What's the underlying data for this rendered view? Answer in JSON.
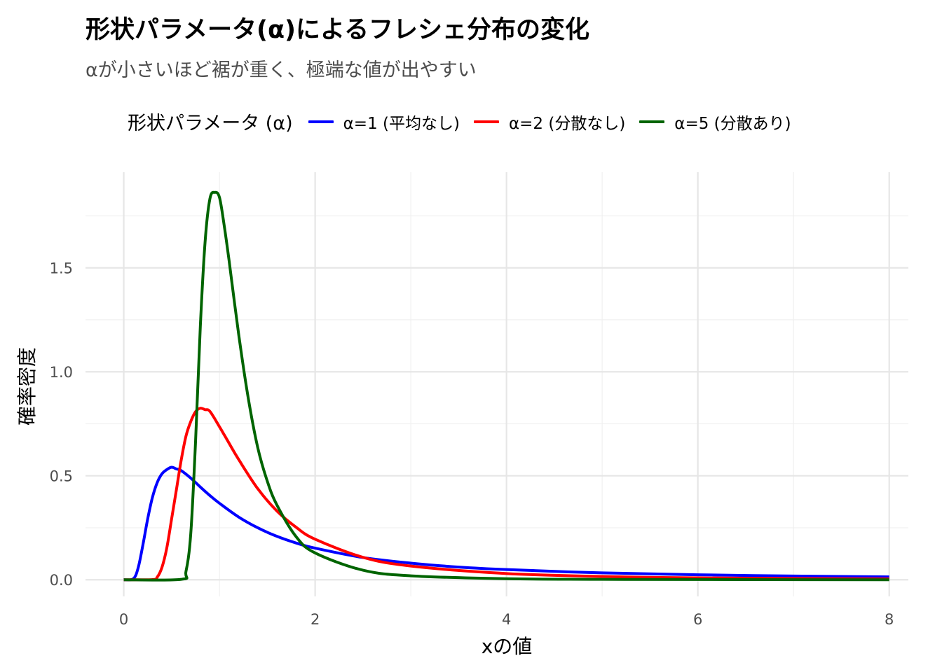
{
  "chart_data": {
    "type": "line",
    "title": "形状パラメータ(α)によるフレシェ分布の変化",
    "subtitle": "αが小さいほど裾が重く、極端な値が出やすい",
    "xlabel": "xの値",
    "ylabel": "確率密度",
    "xlim": [
      -0.4,
      8.2
    ],
    "ylim": [
      -0.08,
      1.96
    ],
    "x_ticks": [
      0,
      2,
      4,
      6,
      8
    ],
    "x_tick_labels": [
      "0",
      "2",
      "4",
      "6",
      "8"
    ],
    "y_ticks": [
      0.0,
      0.5,
      1.0,
      1.5
    ],
    "y_tick_labels": [
      "0.0",
      "0.5",
      "1.0",
      "1.5"
    ],
    "grid": true,
    "legend": {
      "title": "形状パラメータ (α)",
      "position": "top"
    },
    "series": [
      {
        "name": "α=1 (平均なし)",
        "color": "#0000ff",
        "x": [
          0.0,
          0.1,
          0.15,
          0.2,
          0.25,
          0.3,
          0.35,
          0.4,
          0.45,
          0.5,
          0.55,
          0.6,
          0.7,
          0.8,
          0.9,
          1.0,
          1.2,
          1.4,
          1.6,
          1.8,
          2.0,
          2.5,
          3.0,
          3.5,
          4.0,
          5.0,
          6.0,
          7.0,
          8.0
        ],
        "y": [
          0.0,
          0.005,
          0.057,
          0.168,
          0.293,
          0.397,
          0.468,
          0.51,
          0.53,
          0.541,
          0.533,
          0.525,
          0.489,
          0.446,
          0.405,
          0.368,
          0.302,
          0.25,
          0.209,
          0.177,
          0.152,
          0.107,
          0.08,
          0.061,
          0.049,
          0.033,
          0.024,
          0.018,
          0.014
        ]
      },
      {
        "name": "α=2 (分散なし)",
        "color": "#ff0000",
        "x": [
          0.0,
          0.3,
          0.35,
          0.4,
          0.45,
          0.5,
          0.55,
          0.6,
          0.65,
          0.7,
          0.75,
          0.8,
          0.85,
          0.9,
          1.0,
          1.1,
          1.2,
          1.4,
          1.6,
          1.8,
          2.0,
          2.5,
          3.0,
          4.0,
          5.0,
          6.0,
          8.0
        ],
        "y": [
          0.0,
          0.001,
          0.013,
          0.061,
          0.154,
          0.293,
          0.433,
          0.575,
          0.691,
          0.761,
          0.808,
          0.825,
          0.818,
          0.81,
          0.736,
          0.657,
          0.579,
          0.438,
          0.331,
          0.253,
          0.195,
          0.108,
          0.066,
          0.03,
          0.016,
          0.009,
          0.004
        ]
      },
      {
        "name": "α=5 (分散あり)",
        "color": "#006400",
        "x": [
          0.0,
          0.6,
          0.65,
          0.7,
          0.75,
          0.8,
          0.85,
          0.9,
          0.95,
          1.0,
          1.05,
          1.1,
          1.2,
          1.3,
          1.4,
          1.5,
          1.6,
          1.8,
          2.0,
          2.5,
          3.0,
          4.0,
          5.0,
          8.0
        ],
        "y": [
          0.0,
          0.002,
          0.04,
          0.221,
          0.663,
          1.218,
          1.626,
          1.832,
          1.863,
          1.839,
          1.702,
          1.537,
          1.183,
          0.876,
          0.636,
          0.474,
          0.36,
          0.208,
          0.129,
          0.046,
          0.019,
          0.005,
          0.002,
          0.0
        ]
      }
    ]
  }
}
